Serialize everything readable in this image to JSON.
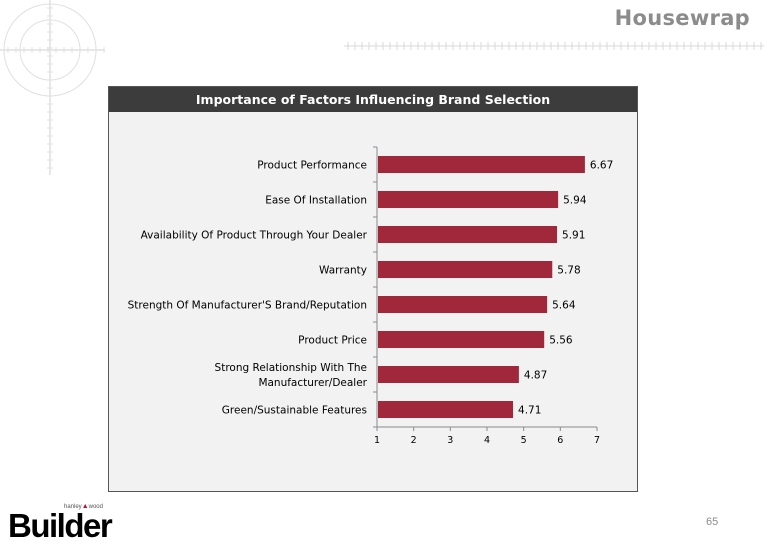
{
  "slide": {
    "title": "Housewrap",
    "page_number": "65"
  },
  "logo": {
    "name": "Builder",
    "publisher_left": "hanley",
    "publisher_right": "wood"
  },
  "colors": {
    "bar": "#a0283a",
    "header_bg": "#3c3c3c",
    "panel_bg": "#f2f2f2",
    "title_gray": "#8c8c8c"
  },
  "chart_data": {
    "type": "bar",
    "orientation": "horizontal",
    "title": "Importance of Factors Influencing Brand Selection",
    "categories": [
      [
        "Product Performance"
      ],
      [
        "Ease Of Installation"
      ],
      [
        "Availability Of Product Through Your Dealer"
      ],
      [
        "Warranty"
      ],
      [
        "Strength Of Manufacturer'S Brand/Reputation"
      ],
      [
        "Product Price"
      ],
      [
        "Strong Relationship With The",
        "Manufacturer/Dealer"
      ],
      [
        "Green/Sustainable Features"
      ]
    ],
    "values": [
      6.67,
      5.94,
      5.91,
      5.78,
      5.64,
      5.56,
      4.87,
      4.71
    ],
    "data_labels": [
      "6.67",
      "5.94",
      "5.91",
      "5.78",
      "5.64",
      "5.56",
      "4.87",
      "4.71"
    ],
    "xlim": [
      1,
      7
    ],
    "xticks": [
      "1",
      "2",
      "3",
      "4",
      "5",
      "6",
      "7"
    ],
    "grid": false,
    "legend": "none"
  }
}
